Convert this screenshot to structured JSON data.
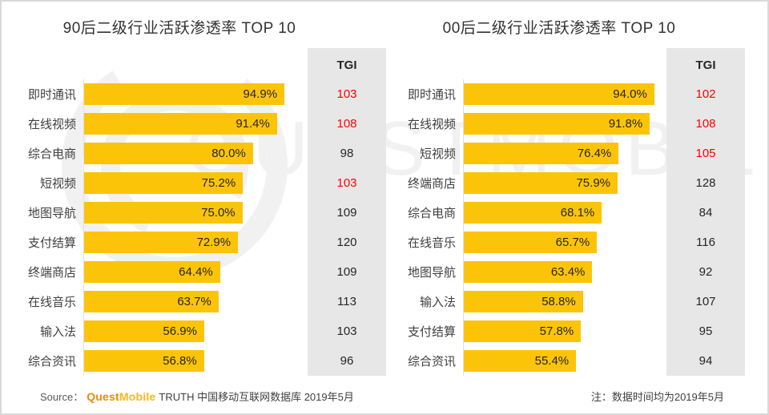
{
  "watermark": {
    "text": "QUESTMOBILE"
  },
  "colors": {
    "bar_yellow": "#FCC409",
    "tgi_red": "#FF0000",
    "tgi_column_bg": "#E7E7E7",
    "frame_border": "#D9D9D9",
    "brand_orange": "#F08A00",
    "brand_gold": "#FBB713"
  },
  "footer": {
    "source_label": "Source：",
    "brand_quest": "Quest",
    "brand_mobile": "Mobile",
    "source_text": "TRUTH 中国移动互联网数据库 2019年5月",
    "note": "注：数据时间均为2019年5月"
  },
  "chart_data": [
    {
      "type": "bar",
      "orientation": "horizontal",
      "title": "90后二级行业活跃渗透率 TOP 10",
      "tgi_header": "TGI",
      "xlim": [
        0,
        96
      ],
      "grid": false,
      "categories": [
        "即时通讯",
        "在线视频",
        "综合电商",
        "短视频",
        "地图导航",
        "支付结算",
        "终端商店",
        "在线音乐",
        "输入法",
        "综合资讯"
      ],
      "values": [
        94.9,
        91.4,
        80.0,
        75.2,
        75.0,
        72.9,
        64.4,
        63.7,
        56.9,
        56.8
      ],
      "value_labels": [
        "94.9%",
        "91.4%",
        "80.0%",
        "75.2%",
        "75.0%",
        "72.9%",
        "64.4%",
        "63.7%",
        "56.9%",
        "56.8%"
      ],
      "tgi": [
        {
          "value": "103",
          "red": true
        },
        {
          "value": "108",
          "red": true
        },
        {
          "value": "98",
          "red": false
        },
        {
          "value": "103",
          "red": true
        },
        {
          "value": "109",
          "red": false
        },
        {
          "value": "120",
          "red": false
        },
        {
          "value": "109",
          "red": false
        },
        {
          "value": "113",
          "red": false
        },
        {
          "value": "103",
          "red": false
        },
        {
          "value": "96",
          "red": false
        }
      ]
    },
    {
      "type": "bar",
      "orientation": "horizontal",
      "title": "00后二级行业活跃渗透率 TOP 10",
      "tgi_header": "TGI",
      "xlim": [
        0,
        100
      ],
      "grid": false,
      "categories": [
        "即时通讯",
        "在线视频",
        "短视频",
        "终端商店",
        "综合电商",
        "在线音乐",
        "地图导航",
        "输入法",
        "支付结算",
        "综合资讯"
      ],
      "values": [
        94.0,
        91.8,
        76.4,
        75.9,
        68.1,
        65.7,
        63.4,
        58.8,
        57.8,
        55.4
      ],
      "value_labels": [
        "94.0%",
        "91.8%",
        "76.4%",
        "75.9%",
        "68.1%",
        "65.7%",
        "63.4%",
        "58.8%",
        "57.8%",
        "55.4%"
      ],
      "tgi": [
        {
          "value": "102",
          "red": true
        },
        {
          "value": "108",
          "red": true
        },
        {
          "value": "105",
          "red": true
        },
        {
          "value": "128",
          "red": false
        },
        {
          "value": "84",
          "red": false
        },
        {
          "value": "116",
          "red": false
        },
        {
          "value": "92",
          "red": false
        },
        {
          "value": "107",
          "red": false
        },
        {
          "value": "95",
          "red": false
        },
        {
          "value": "94",
          "red": false
        }
      ]
    }
  ]
}
